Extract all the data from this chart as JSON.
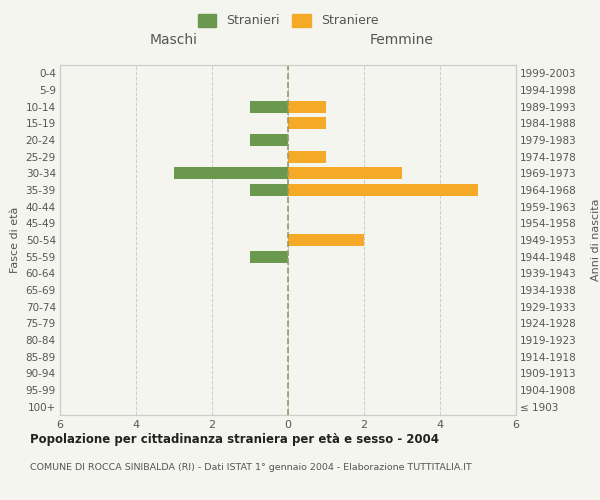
{
  "age_groups": [
    "100+",
    "95-99",
    "90-94",
    "85-89",
    "80-84",
    "75-79",
    "70-74",
    "65-69",
    "60-64",
    "55-59",
    "50-54",
    "45-49",
    "40-44",
    "35-39",
    "30-34",
    "25-29",
    "20-24",
    "15-19",
    "10-14",
    "5-9",
    "0-4"
  ],
  "birth_years": [
    "≤ 1903",
    "1904-1908",
    "1909-1913",
    "1914-1918",
    "1919-1923",
    "1924-1928",
    "1929-1933",
    "1934-1938",
    "1939-1943",
    "1944-1948",
    "1949-1953",
    "1954-1958",
    "1959-1963",
    "1964-1968",
    "1969-1973",
    "1974-1978",
    "1979-1983",
    "1984-1988",
    "1989-1993",
    "1994-1998",
    "1999-2003"
  ],
  "males": [
    0,
    0,
    0,
    0,
    0,
    0,
    0,
    0,
    0,
    1,
    0,
    0,
    0,
    1,
    3,
    0,
    1,
    0,
    1,
    0,
    0
  ],
  "females": [
    0,
    0,
    0,
    0,
    0,
    0,
    0,
    0,
    0,
    0,
    2,
    0,
    0,
    5,
    3,
    1,
    0,
    1,
    1,
    0,
    0
  ],
  "male_color": "#6a994e",
  "female_color": "#f4a927",
  "background_color": "#f5f5f0",
  "bar_height": 0.72,
  "xlim": 6,
  "title": "Popolazione per cittadinanza straniera per età e sesso - 2004",
  "subtitle": "COMUNE DI ROCCA SINIBALDA (RI) - Dati ISTAT 1° gennaio 2004 - Elaborazione TUTTITALIA.IT",
  "legend_male": "Stranieri",
  "legend_female": "Straniere",
  "xlabel_left": "Maschi",
  "xlabel_right": "Femmine",
  "ylabel_left": "Fasce di età",
  "ylabel_right": "Anni di nascita",
  "grid_color": "#cccccc",
  "spine_color": "#cccccc",
  "text_color": "#555555",
  "zero_line_color": "#999966"
}
